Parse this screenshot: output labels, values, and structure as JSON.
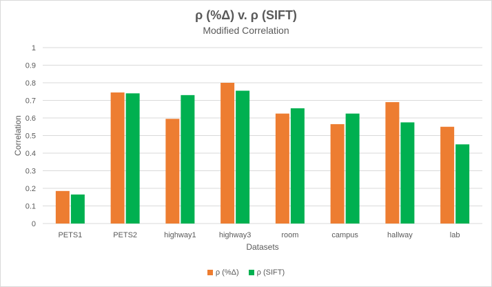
{
  "chart_data": {
    "type": "bar",
    "title": "ρ (%Δ) v. ρ (SIFT)",
    "subtitle": "Modified Correlation",
    "xlabel": "Datasets",
    "ylabel": "Correlation",
    "ylim": [
      0,
      1
    ],
    "yticks": [
      "0",
      "0.1",
      "0.2",
      "0.3",
      "0.4",
      "0.5",
      "0.6",
      "0.7",
      "0.8",
      "0.9",
      "1"
    ],
    "grid": true,
    "legend_position": "bottom",
    "categories": [
      "PETS1",
      "PETS2",
      "highway1",
      "highway3",
      "room",
      "campus",
      "hallway",
      "lab"
    ],
    "series": [
      {
        "name": "ρ (%Δ)",
        "color": "#ed7d31",
        "values": [
          0.185,
          0.745,
          0.595,
          0.8,
          0.625,
          0.565,
          0.69,
          0.55
        ]
      },
      {
        "name": "ρ (SIFT)",
        "color": "#00b050",
        "values": [
          0.165,
          0.74,
          0.73,
          0.755,
          0.655,
          0.625,
          0.575,
          0.45
        ]
      }
    ]
  }
}
